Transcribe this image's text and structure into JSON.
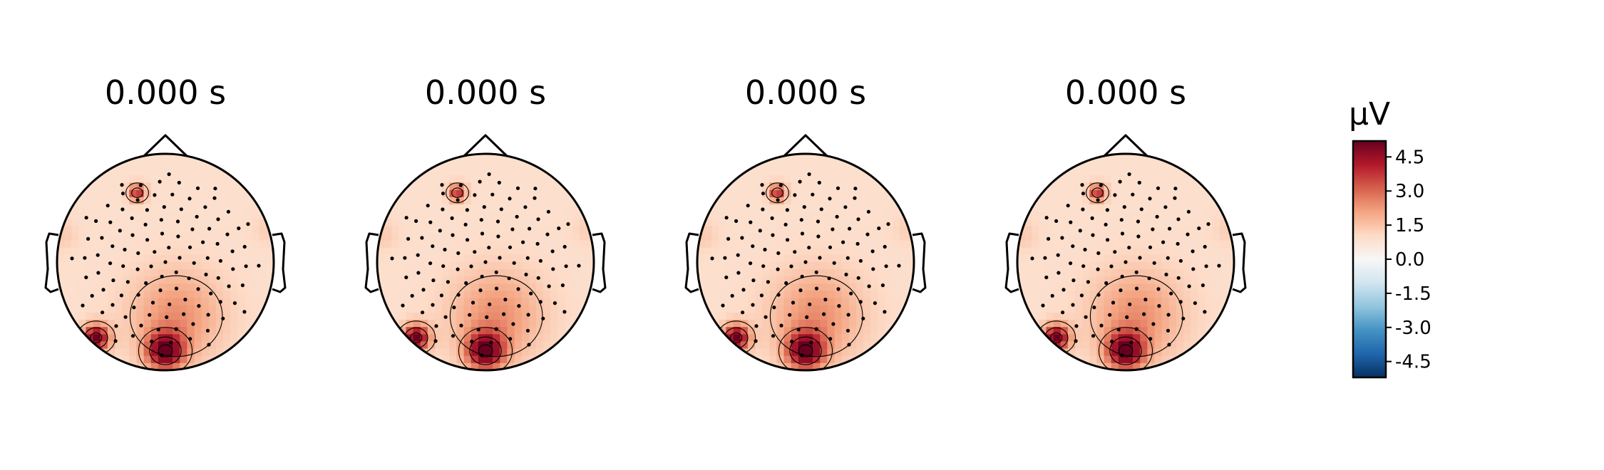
{
  "figure": {
    "titles": [
      "0.000 s",
      "0.000 s",
      "0.000 s",
      "0.000 s"
    ],
    "colorbar": {
      "unit": "µV",
      "ticks": [
        4.5,
        3.0,
        1.5,
        0.0,
        -1.5,
        -3.0,
        -4.5
      ],
      "tick_labels": [
        "4.5",
        "3.0",
        "1.5",
        "0.0",
        "-1.5",
        "-3.0",
        "-4.5"
      ],
      "vmin": -5.2,
      "vmax": 5.2,
      "colormap": "RdBu_r",
      "colors": {
        "negative": "#053061",
        "zero": "#f7f7f7",
        "positive": "#67001f"
      }
    }
  },
  "chart_data": {
    "type": "heatmap",
    "subtype": "eeg-topomap",
    "panels": 4,
    "panel_titles": [
      "0.000 s",
      "0.000 s",
      "0.000 s",
      "0.000 s"
    ],
    "unit": "µV",
    "color_range": [
      -5.2,
      5.2
    ],
    "sensor_count": 116,
    "sources_uV": [
      {
        "region": "left-frontal",
        "peak": 4.0
      },
      {
        "region": "left-occipital",
        "peak": 5.2
      },
      {
        "region": "midline-occipital",
        "peak": 5.0
      },
      {
        "region": "posterior",
        "peak": 2.4
      }
    ],
    "baseline_uV": 0.9,
    "contour_levels_uV": [
      1.5,
      3.0,
      4.5
    ]
  }
}
